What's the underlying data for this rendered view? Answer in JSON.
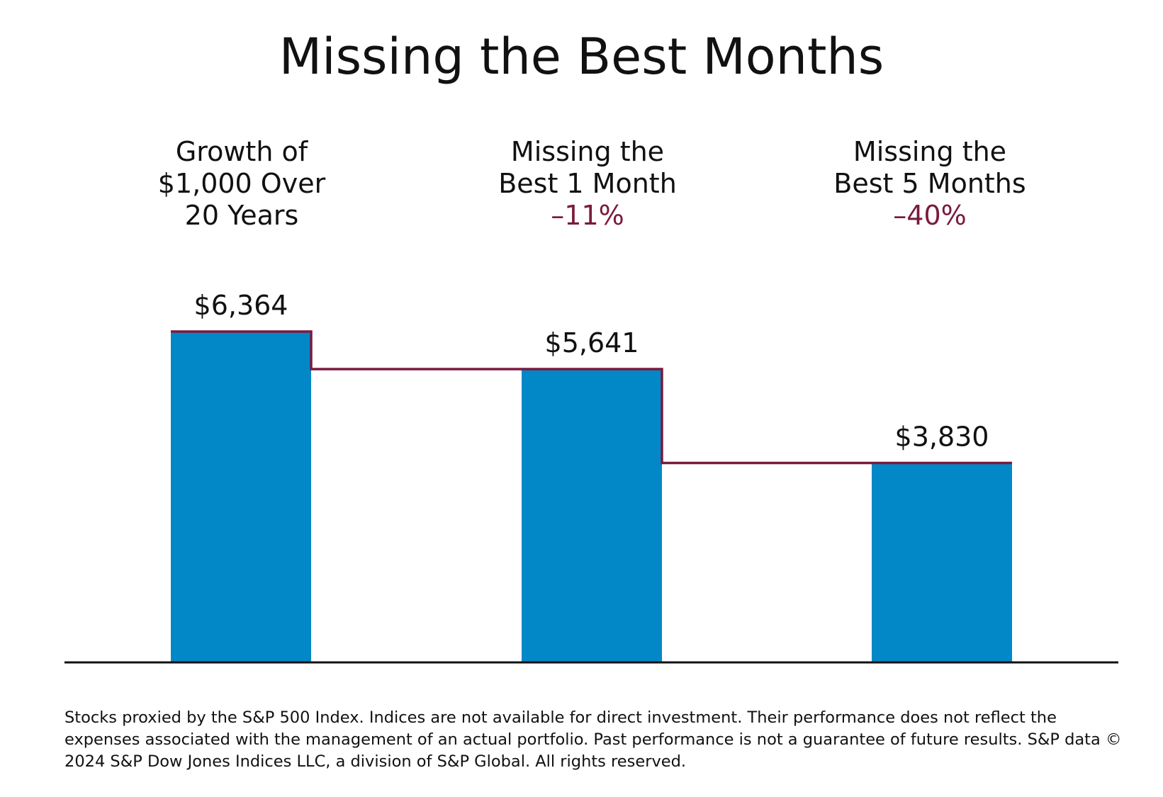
{
  "title": "Missing the Best Months",
  "categories": [
    {
      "lines": [
        "Growth of",
        "$1,000 Over",
        "20 Years"
      ],
      "change": ""
    },
    {
      "lines": [
        "Missing the",
        "Best 1 Month"
      ],
      "change": "–11%"
    },
    {
      "lines": [
        "Missing the",
        "Best 5 Months"
      ],
      "change": "–40%"
    }
  ],
  "footnote": "Stocks proxied by the S&P 500 Index. Indices are not available for direct investment. Their performance does not reflect the expenses associated with the management of an actual portfolio. Past performance is not a guarantee of future results. S&P data © 2024 S&P Dow Jones Indices LLC, a division of S&P Global. All rights reserved.",
  "colors": {
    "bar": "#0288c7",
    "step_line": "#7a1a3e",
    "change_text": "#7a1a3e",
    "axis": "#111111"
  },
  "chart_data": {
    "type": "bar",
    "title": "Missing the Best Months",
    "categories": [
      "Growth of $1,000 Over 20 Years",
      "Missing the Best 1 Month –11%",
      "Missing the Best 5 Months –40%"
    ],
    "values": [
      6364,
      5641,
      3830
    ],
    "value_labels": [
      "$6,364",
      "$5,641",
      "$3,830"
    ],
    "ylim": [
      0,
      6364
    ],
    "grid": false,
    "legend": "none",
    "step_line": true
  }
}
